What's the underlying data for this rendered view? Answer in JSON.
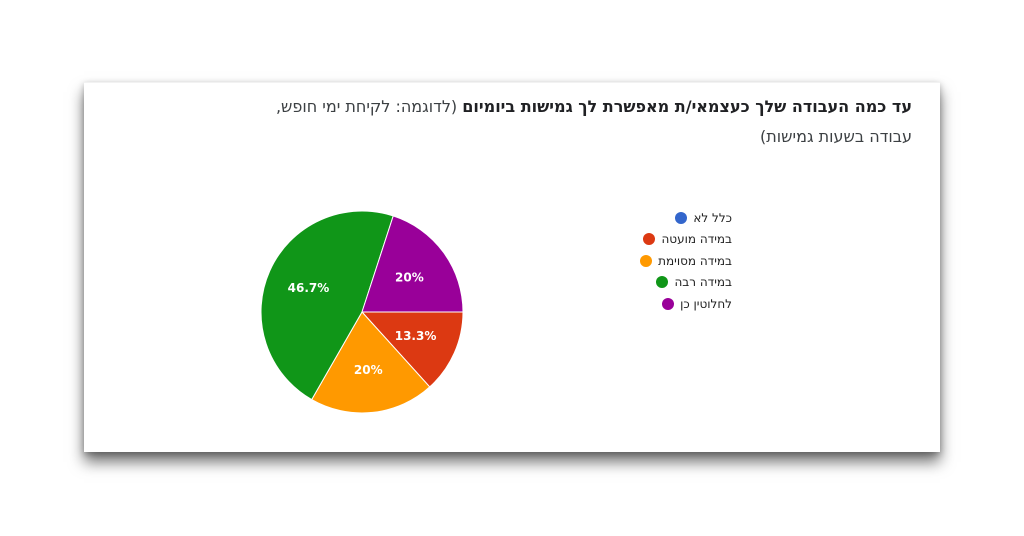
{
  "question": {
    "title_bold": "עד כמה העבודה שלך כעצמאי/ת מאפשרת לך גמישות ביומיום",
    "title_normal": " (לדוגמה: לקיחת ימי חופש, עבודה בשעות גמישות)"
  },
  "chart_data": {
    "type": "pie",
    "legend_position": "right",
    "categories": [
      "כלל לא",
      "במידה מועטה",
      "במידה מסוימת",
      "במידה רבה",
      "לחלוטין כן"
    ],
    "values": [
      0,
      13.3,
      20,
      46.7,
      20
    ],
    "data_labels": [
      "",
      "13.3%",
      "20%",
      "46.7%",
      "20%"
    ],
    "colors": [
      "#3366cc",
      "#dc3912",
      "#ff9900",
      "#109618",
      "#990099"
    ]
  }
}
